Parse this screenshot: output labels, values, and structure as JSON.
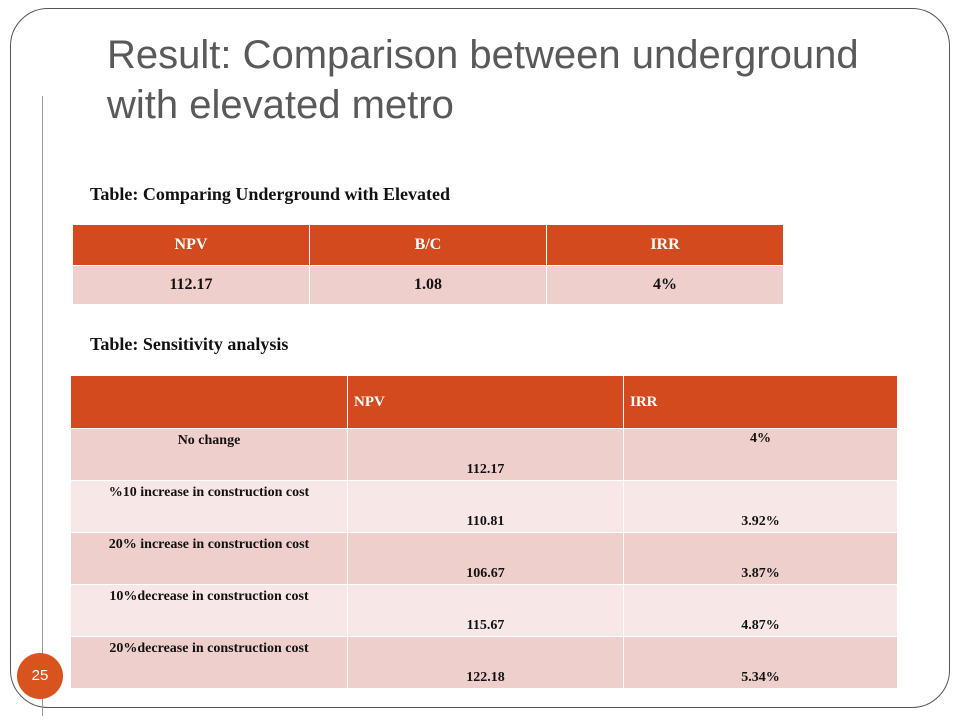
{
  "slide": {
    "title": "Result: Comparison between underground with elevated metro",
    "page_number": "25"
  },
  "table1": {
    "caption": "Table: Comparing Underground with Elevated",
    "headers": [
      "NPV",
      "B/C",
      "IRR"
    ],
    "row": [
      "112.17",
      "1.08",
      "4%"
    ]
  },
  "table2": {
    "caption": "Table: Sensitivity analysis",
    "headers": [
      "",
      "NPV",
      "IRR"
    ],
    "rows": [
      {
        "label": "No change",
        "npv": "112.17",
        "irr": "4%"
      },
      {
        "label": "%10 increase in construction cost",
        "npv": "110.81",
        "irr": "3.92%"
      },
      {
        "label": "20% increase in construction cost",
        "npv": "106.67",
        "irr": "3.87%"
      },
      {
        "label": "10%decrease in construction cost",
        "npv": "115.67",
        "irr": "4.87%"
      },
      {
        "label": "20%decrease in construction cost",
        "npv": "122.18",
        "irr": "5.34%"
      }
    ]
  },
  "colors": {
    "accent": "#d24a1e",
    "row_dark": "#efcfcc",
    "row_light": "#f7e8e7",
    "title_text": "#595959"
  }
}
